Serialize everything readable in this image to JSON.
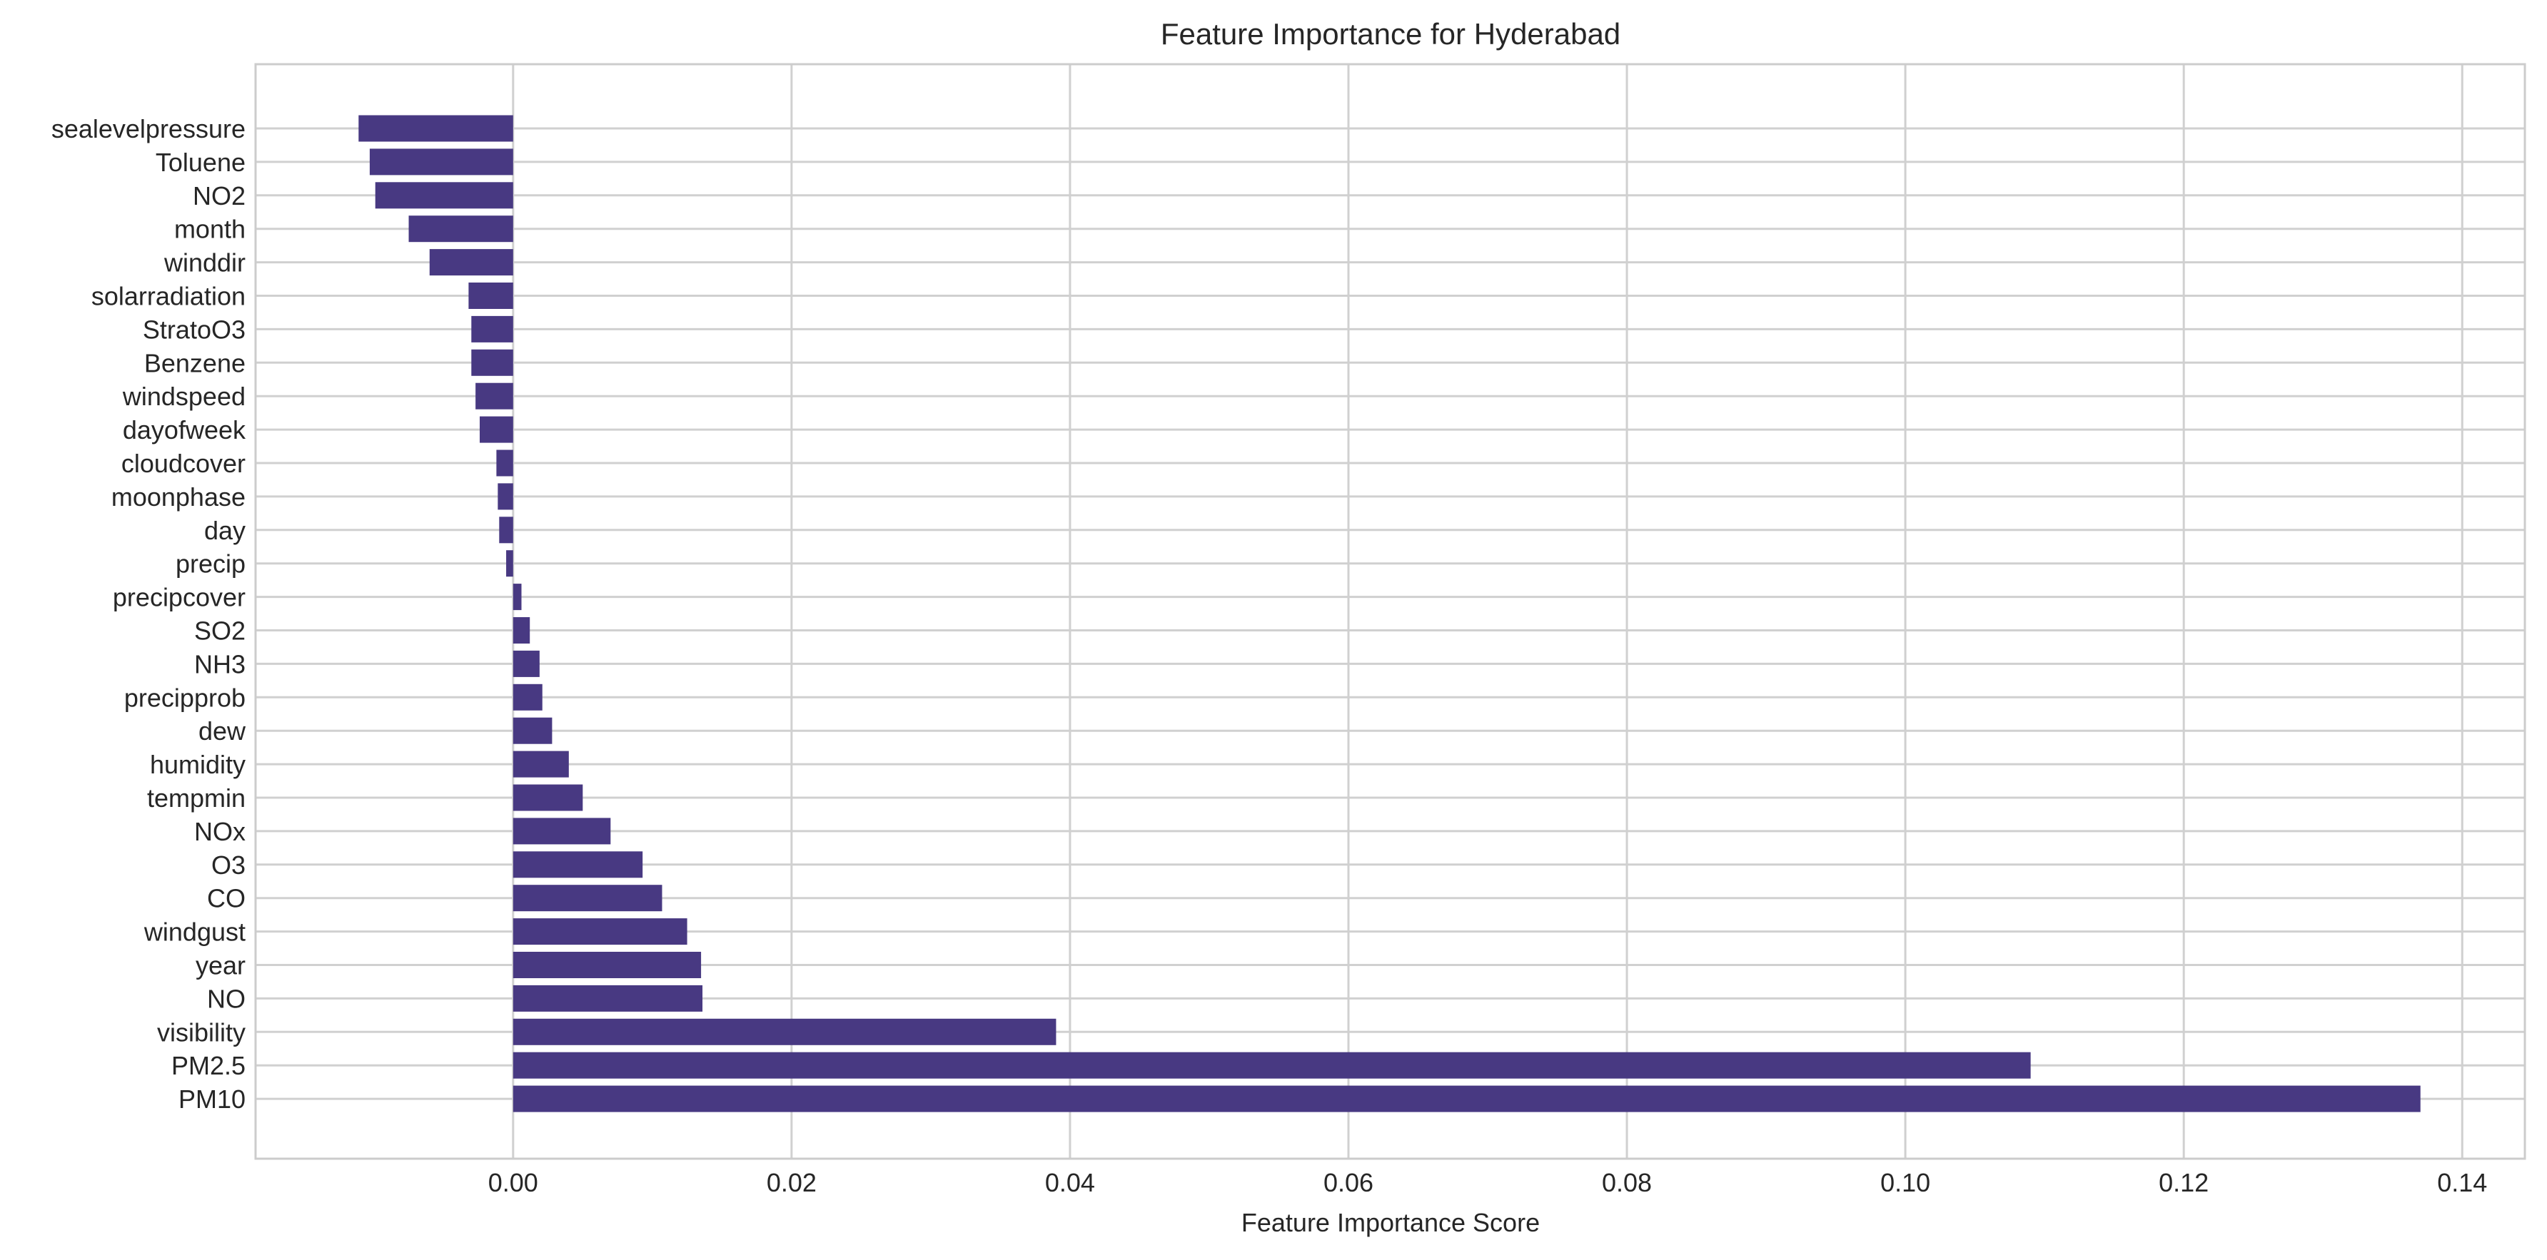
{
  "chart_data": {
    "type": "bar",
    "orientation": "horizontal",
    "title": "Feature Importance for Hyderabad",
    "xlabel": "Feature Importance Score",
    "ylabel": "",
    "xlim": [
      -0.0185,
      0.1445
    ],
    "x_ticks": [
      0.0,
      0.02,
      0.04,
      0.06,
      0.08,
      0.1,
      0.12,
      0.14
    ],
    "x_tick_labels": [
      "0.00",
      "0.02",
      "0.04",
      "0.06",
      "0.08",
      "0.10",
      "0.12",
      "0.14"
    ],
    "grid": true,
    "bar_color": "#483982",
    "categories": [
      "sealevelpressure",
      "Toluene",
      "NO2",
      "month",
      "winddir",
      "solarradiation",
      "StratoO3",
      "Benzene",
      "windspeed",
      "dayofweek",
      "cloudcover",
      "moonphase",
      "day",
      "precip",
      "precipcover",
      "SO2",
      "NH3",
      "precipprob",
      "dew",
      "humidity",
      "tempmin",
      "NOx",
      "O3",
      "CO",
      "windgust",
      "year",
      "NO",
      "visibility",
      "PM2.5",
      "PM10"
    ],
    "values": [
      -0.0111,
      -0.0103,
      -0.0099,
      -0.0075,
      -0.006,
      -0.0032,
      -0.003,
      -0.003,
      -0.0027,
      -0.0024,
      -0.0012,
      -0.0011,
      -0.001,
      -0.0005,
      0.0006,
      0.0012,
      0.0019,
      0.0021,
      0.0028,
      0.004,
      0.005,
      0.007,
      0.0093,
      0.0107,
      0.0125,
      0.0135,
      0.0136,
      0.039,
      0.109,
      0.137
    ]
  }
}
